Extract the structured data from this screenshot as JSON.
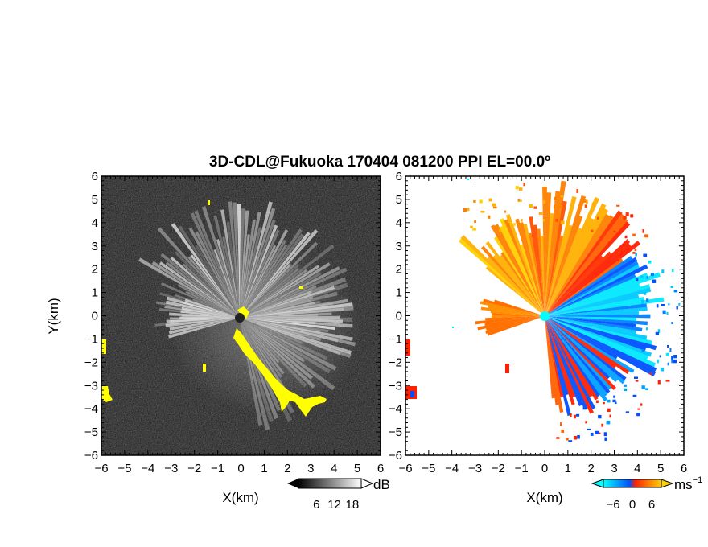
{
  "title": "3D-CDL@Fukuoka 170404 081200 PPI EL=00.0º",
  "chart_data": [
    {
      "type": "heatmap",
      "name": "intensity-ppi",
      "xlabel": "X(km)",
      "ylabel": "Y(km)",
      "xlim": [
        -6,
        6
      ],
      "ylim": [
        -6,
        6
      ],
      "xticks": [
        "−6",
        "−5",
        "−4",
        "−3",
        "−2",
        "−1",
        "0",
        "1",
        "2",
        "3",
        "4",
        "5",
        "6"
      ],
      "yticks": [
        "−6",
        "−5",
        "−4",
        "−3",
        "−2",
        "−1",
        "0",
        "1",
        "2",
        "3",
        "4",
        "5",
        "6"
      ],
      "colorbar": {
        "label": "dB",
        "ticks": [
          "6",
          "12",
          "18"
        ],
        "tick_values": [
          6,
          12,
          18
        ],
        "range": [
          0,
          21
        ],
        "colormap": [
          "#000000",
          "#ffffff"
        ],
        "highlight_color": "#ffff00"
      }
    },
    {
      "type": "heatmap",
      "name": "doppler-velocity-ppi",
      "xlabel": "X(km)",
      "ylabel": "",
      "xlim": [
        -6,
        6
      ],
      "ylim": [
        -6,
        6
      ],
      "xticks": [
        "−6",
        "−5",
        "−4",
        "−3",
        "−2",
        "−1",
        "0",
        "1",
        "2",
        "3",
        "4",
        "5",
        "6"
      ],
      "yticks": [
        "−6",
        "−5",
        "−4",
        "−3",
        "−2",
        "−1",
        "0",
        "1",
        "2",
        "3",
        "4",
        "5",
        "6"
      ],
      "colorbar": {
        "label": "ms",
        "label_sup": "−1",
        "ticks": [
          "−6",
          "0",
          "6"
        ],
        "tick_values": [
          -6,
          0,
          6
        ],
        "range": [
          -9,
          9
        ],
        "colormap": [
          "#00ffff",
          "#0060ff",
          "#ff2000",
          "#ffd000"
        ]
      }
    }
  ]
}
